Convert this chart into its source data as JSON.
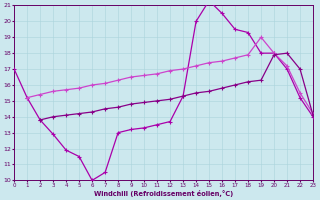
{
  "xlabel": "Windchill (Refroidissement éolien,°C)",
  "bg_color": "#cce8ee",
  "line_color1": "#aa00aa",
  "line_color2": "#cc44cc",
  "line_color3": "#880088",
  "xmin": 0,
  "xmax": 23,
  "ymin": 10,
  "ymax": 21,
  "yticks": [
    10,
    11,
    12,
    13,
    14,
    15,
    16,
    17,
    18,
    19,
    20,
    21
  ],
  "xticks": [
    0,
    1,
    2,
    3,
    4,
    5,
    6,
    7,
    8,
    9,
    10,
    11,
    12,
    13,
    14,
    15,
    16,
    17,
    18,
    19,
    20,
    21,
    22,
    23
  ],
  "line1_x": [
    0,
    1,
    2,
    3,
    4,
    5,
    6,
    7,
    8,
    9,
    10,
    11,
    12,
    13,
    14,
    15,
    16,
    17,
    18,
    19,
    20,
    21,
    22,
    23
  ],
  "line1_y": [
    17.0,
    15.2,
    13.8,
    12.9,
    11.9,
    11.5,
    10.0,
    10.5,
    13.0,
    13.2,
    13.3,
    13.5,
    13.7,
    15.3,
    20.0,
    21.3,
    20.5,
    19.5,
    19.3,
    18.0,
    18.0,
    17.0,
    15.2,
    14.0
  ],
  "line2_x": [
    1,
    2,
    3,
    4,
    5,
    6,
    7,
    8,
    9,
    10,
    11,
    12,
    13,
    14,
    15,
    16,
    17,
    18,
    19,
    20,
    21,
    22,
    23
  ],
  "line2_y": [
    15.2,
    15.4,
    15.6,
    15.7,
    15.8,
    16.0,
    16.1,
    16.3,
    16.5,
    16.6,
    16.7,
    16.9,
    17.0,
    17.2,
    17.4,
    17.5,
    17.7,
    17.9,
    19.0,
    18.0,
    17.2,
    15.5,
    14.2
  ],
  "line3_x": [
    2,
    3,
    4,
    5,
    6,
    7,
    8,
    9,
    10,
    11,
    12,
    13,
    14,
    15,
    16,
    17,
    18,
    19,
    20,
    21,
    22,
    23
  ],
  "line3_y": [
    13.8,
    14.0,
    14.1,
    14.2,
    14.3,
    14.5,
    14.6,
    14.8,
    14.9,
    15.0,
    15.1,
    15.3,
    15.5,
    15.6,
    15.8,
    16.0,
    16.2,
    16.3,
    17.9,
    18.0,
    17.0,
    14.1
  ]
}
